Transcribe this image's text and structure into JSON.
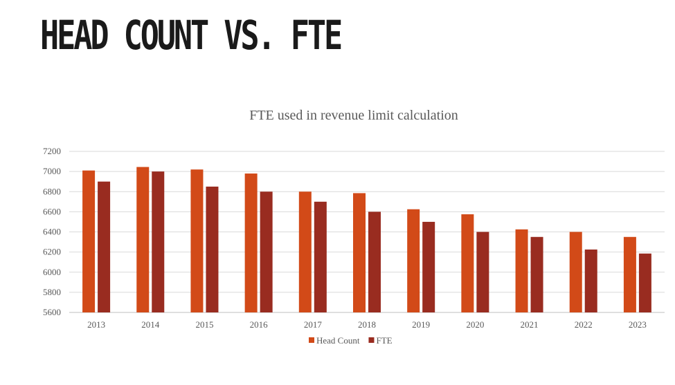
{
  "slide": {
    "title": "HEAD COUNT VS. FTE"
  },
  "colors": {
    "head_count": "#D24A18",
    "fte": "#992C20"
  },
  "chart_data": {
    "type": "bar",
    "title": "FTE used in revenue limit calculation",
    "xlabel": "",
    "ylabel": "",
    "categories": [
      "2013",
      "2014",
      "2015",
      "2016",
      "2017",
      "2018",
      "2019",
      "2020",
      "2021",
      "2022",
      "2023"
    ],
    "series": [
      {
        "name": "Head Count",
        "values": [
          7010,
          7045,
          7020,
          6980,
          6800,
          6785,
          6625,
          6575,
          6425,
          6400,
          6350
        ]
      },
      {
        "name": "FTE",
        "values": [
          6900,
          7000,
          6850,
          6800,
          6700,
          6600,
          6500,
          6400,
          6350,
          6225,
          6185
        ]
      }
    ],
    "ylim": [
      5600,
      7200
    ],
    "yticks": [
      5600,
      5800,
      6000,
      6200,
      6400,
      6600,
      6800,
      7000,
      7200
    ],
    "grid": true,
    "legend_position": "bottom"
  }
}
